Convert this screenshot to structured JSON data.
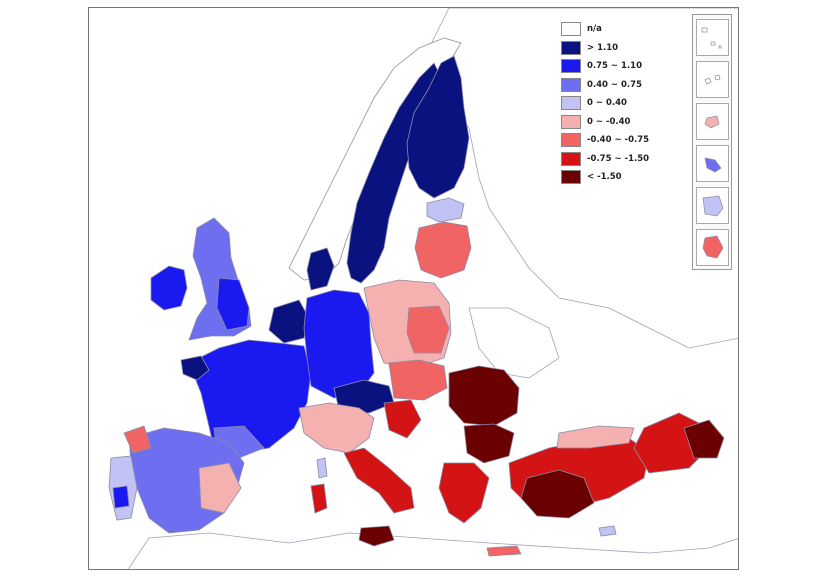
{
  "legend": {
    "items": [
      {
        "label": "n/a",
        "color": "#ffffff"
      },
      {
        "label": "> 1.10",
        "color": "#0a1280"
      },
      {
        "label": "0.75 ~ 1.10",
        "color": "#1a1af0"
      },
      {
        "label": "0.40 ~ 0.75",
        "color": "#6e6ef0"
      },
      {
        "label": "0 ~ 0.40",
        "color": "#c2c2f5"
      },
      {
        "label": "0 ~ -0.40",
        "color": "#f5b0b0"
      },
      {
        "label": "-0.40 ~ -0.75",
        "color": "#f06464"
      },
      {
        "label": "-0.75 ~ -1.50",
        "color": "#d41414"
      },
      {
        "label": "< -1.50",
        "color": "#6a0000"
      }
    ]
  },
  "colors": {
    "border": "#8c8ca8",
    "land_na": "#ffffff",
    "sea": "#ffffff"
  },
  "regions": [
    {
      "name": "Norway",
      "class": "n/a"
    },
    {
      "name": "Sweden",
      "class": "> 1.10"
    },
    {
      "name": "Finland",
      "class": "> 1.10"
    },
    {
      "name": "Denmark",
      "class": "> 1.10"
    },
    {
      "name": "Ireland",
      "class": "0.75 ~ 1.10"
    },
    {
      "name": "United Kingdom",
      "class": "0.40 ~ 0.75"
    },
    {
      "name": "France",
      "class": "0.75 ~ 1.10"
    },
    {
      "name": "Benelux",
      "class": "> 1.10"
    },
    {
      "name": "Germany",
      "class": "0.75 ~ 1.10"
    },
    {
      "name": "Austria",
      "class": "> 1.10"
    },
    {
      "name": "Spain",
      "class": "0.40 ~ 0.75"
    },
    {
      "name": "Portugal",
      "class": "0 ~ 0.40"
    },
    {
      "name": "Italy north",
      "class": "0 ~ -0.40"
    },
    {
      "name": "Italy south",
      "class": "-0.75 ~ -1.50"
    },
    {
      "name": "Poland",
      "class": "0 ~ -0.40"
    },
    {
      "name": "Lithuania/Latvia",
      "class": "-0.40 ~ -0.75"
    },
    {
      "name": "Estonia",
      "class": "0 ~ 0.40"
    },
    {
      "name": "Romania",
      "class": "< -1.50"
    },
    {
      "name": "Bulgaria",
      "class": "< -1.50"
    },
    {
      "name": "Greece",
      "class": "-0.75 ~ -1.50"
    },
    {
      "name": "Turkey west",
      "class": "-0.75 ~ -1.50"
    },
    {
      "name": "Turkey east",
      "class": "< -1.50"
    },
    {
      "name": "Croatia",
      "class": "-0.75 ~ -1.50"
    }
  ]
}
